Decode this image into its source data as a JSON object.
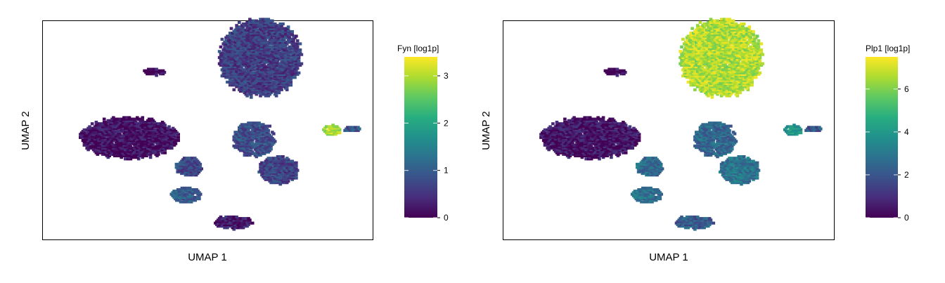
{
  "chart_data": [
    {
      "type": "scatter",
      "description_kind": "hexbin UMAP embedding colored by gene expression",
      "xlabel": "UMAP 1",
      "ylabel": "UMAP 2",
      "xlim": [
        -10,
        10
      ],
      "ylim": [
        -10,
        10
      ],
      "grid": false,
      "legend": {
        "title": "Fyn [log1p]",
        "placement": "right",
        "colormap": "viridis",
        "range": [
          0,
          3.4
        ],
        "ticks": [
          0,
          1,
          2,
          3
        ]
      },
      "clusters": [
        {
          "id": "top-right-large",
          "center": [
            3.2,
            6.6
          ],
          "size": [
            2.5,
            3.6
          ],
          "value": 0.62
        },
        {
          "id": "left-large",
          "center": [
            -4.7,
            -0.7
          ],
          "size": [
            3.0,
            1.9
          ],
          "value": 0.15
        },
        {
          "id": "center-right-upper",
          "center": [
            2.8,
            -0.8
          ],
          "size": [
            1.3,
            1.6
          ],
          "value": 0.8
        },
        {
          "id": "center-right-lower",
          "center": [
            4.3,
            -3.6
          ],
          "size": [
            1.2,
            1.3
          ],
          "value": 0.7
        },
        {
          "id": "bottom-left-small",
          "center": [
            -1.3,
            -5.9
          ],
          "size": [
            0.9,
            0.75
          ],
          "value": 1.0
        },
        {
          "id": "left-middle-small",
          "center": [
            -1.1,
            -3.3
          ],
          "size": [
            0.8,
            0.9
          ],
          "value": 0.75
        },
        {
          "id": "bottom-center",
          "center": [
            1.5,
            -8.4
          ],
          "size": [
            1.2,
            0.6
          ],
          "value": 0.25
        },
        {
          "id": "top-left-small",
          "center": [
            -3.2,
            5.3
          ],
          "size": [
            0.7,
            0.3
          ],
          "value": 0.1
        },
        {
          "id": "far-right-small",
          "center": [
            7.5,
            0.0
          ],
          "size": [
            0.5,
            0.5
          ],
          "value": 3.0
        },
        {
          "id": "far-right-tail",
          "center": [
            8.7,
            0.1
          ],
          "size": [
            0.5,
            0.25
          ],
          "value": 0.9
        }
      ]
    },
    {
      "type": "scatter",
      "description_kind": "hexbin UMAP embedding colored by gene expression",
      "xlabel": "UMAP 1",
      "ylabel": "UMAP 2",
      "xlim": [
        -10,
        10
      ],
      "ylim": [
        -10,
        10
      ],
      "grid": false,
      "legend": {
        "title": "Plp1 [log1p]",
        "placement": "right",
        "colormap": "viridis",
        "range": [
          0,
          7.5
        ],
        "ticks": [
          0,
          2,
          4,
          6
        ]
      },
      "clusters": [
        {
          "id": "top-right-large",
          "center": [
            3.2,
            6.6
          ],
          "size": [
            2.5,
            3.6
          ],
          "value": 6.6
        },
        {
          "id": "left-large",
          "center": [
            -4.7,
            -0.7
          ],
          "size": [
            3.0,
            1.9
          ],
          "value": 0.4
        },
        {
          "id": "center-right-upper",
          "center": [
            2.8,
            -0.8
          ],
          "size": [
            1.3,
            1.6
          ],
          "value": 2.5
        },
        {
          "id": "center-right-lower",
          "center": [
            4.3,
            -3.6
          ],
          "size": [
            1.2,
            1.3
          ],
          "value": 2.9
        },
        {
          "id": "bottom-left-small",
          "center": [
            -1.3,
            -5.9
          ],
          "size": [
            0.9,
            0.75
          ],
          "value": 2.8
        },
        {
          "id": "left-middle-small",
          "center": [
            -1.1,
            -3.3
          ],
          "size": [
            0.8,
            0.9
          ],
          "value": 2.6
        },
        {
          "id": "bottom-center",
          "center": [
            1.5,
            -8.4
          ],
          "size": [
            1.2,
            0.6
          ],
          "value": 2.2
        },
        {
          "id": "top-left-small",
          "center": [
            -3.2,
            5.3
          ],
          "size": [
            0.7,
            0.3
          ],
          "value": 0.2
        },
        {
          "id": "far-right-small",
          "center": [
            7.5,
            0.0
          ],
          "size": [
            0.5,
            0.5
          ],
          "value": 4.0
        },
        {
          "id": "far-right-tail",
          "center": [
            8.7,
            0.1
          ],
          "size": [
            0.5,
            0.25
          ],
          "value": 2.0
        }
      ]
    }
  ]
}
